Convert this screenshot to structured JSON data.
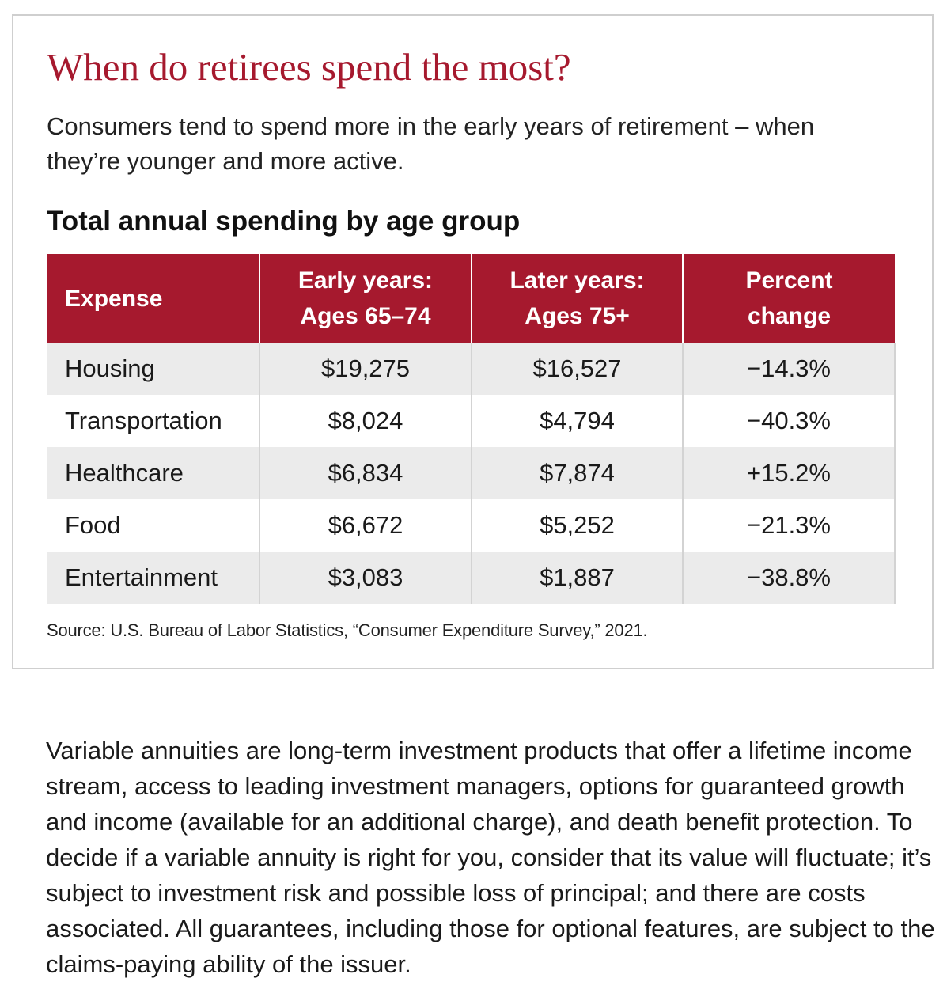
{
  "card": {
    "title": "When do retirees spend the most?",
    "subtitle": "Consumers tend to spend more in the early years of retirement – when they’re younger and more active.",
    "table_title": "Total annual spending by age group",
    "table": {
      "headers": [
        [
          "Expense"
        ],
        [
          "Early years:",
          "Ages 65–74"
        ],
        [
          "Later years:",
          "Ages 75+"
        ],
        [
          "Percent",
          "change"
        ]
      ],
      "rows": [
        [
          "Housing",
          "$19,275",
          "$16,527",
          "−14.3%"
        ],
        [
          "Transportation",
          "$8,024",
          "$4,794",
          "−40.3%"
        ],
        [
          "Healthcare",
          "$6,834",
          "$7,874",
          "+15.2%"
        ],
        [
          "Food",
          "$6,672",
          "$5,252",
          "−21.3%"
        ],
        [
          "Entertainment",
          "$3,083",
          "$1,887",
          "−38.8%"
        ]
      ]
    },
    "source": "Source: U.S. Bureau of Labor Statistics, “Consumer Expenditure Survey,” 2021."
  },
  "disclaimer": "Variable annuities are long-term investment products that offer a lifetime income stream, access to leading investment managers, options for guaranteed growth and income (available for an additional charge), and death benefit protection. To decide if a variable annuity is right for you, consider that its value will fluctuate; it’s subject to investment risk and possible loss of principal; and there are costs associated. All guarantees, including those for optional features, are subject to the claims-paying ability of the issuer.",
  "colors": {
    "accent": "#a6192e",
    "row_shade": "#ebebeb",
    "border": "#cfcfcf"
  }
}
